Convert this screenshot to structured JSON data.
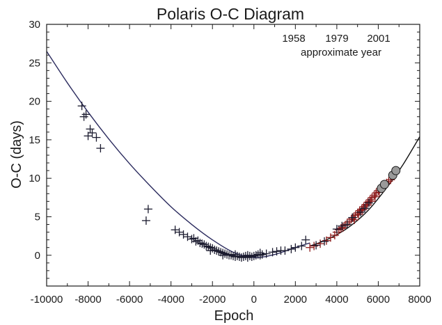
{
  "chart_data": {
    "type": "scatter",
    "title": "Polaris O-C Diagram",
    "xlabel": "Epoch",
    "ylabel": "O-C (days)",
    "xlim": [
      -10000,
      8000
    ],
    "ylim": [
      -4,
      30
    ],
    "x_ticks": [
      "-10000",
      "-8000",
      "-6000",
      "-4000",
      "-2000",
      "0",
      "2000",
      "4000",
      "6000",
      "8000"
    ],
    "y_ticks": [
      "0",
      "5",
      "10",
      "15",
      "20",
      "25",
      "30"
    ],
    "top_axis": {
      "years": [
        "1958",
        "1979",
        "2001"
      ],
      "label": "approximate year"
    },
    "colors": {
      "fit_dark": "#2b2b5e",
      "fit_black": "#111111",
      "old_points": "#1a1a2e",
      "recent_points": "#8b1a1a",
      "circles_fill": "#9a9a9a"
    },
    "fit_curves": [
      {
        "x": [
          -10000,
          -9000,
          -8000,
          -7000,
          -6000,
          -5000,
          -4000,
          -3000,
          -2000,
          -1000,
          0,
          1000,
          2000,
          2700
        ],
        "y": [
          26.5,
          22.4,
          18.6,
          15.1,
          11.9,
          9.0,
          6.3,
          4.0,
          2.0,
          0.4,
          -0.3,
          0.1,
          1.0,
          1.6
        ]
      },
      {
        "x": [
          2700,
          3500,
          4500,
          5500,
          6500,
          7200,
          8000
        ],
        "y": [
          1.2,
          2.0,
          3.5,
          5.8,
          9.1,
          11.8,
          15.4
        ]
      }
    ],
    "series": [
      {
        "color_key": "old_points",
        "marker": "plus",
        "points": [
          [
            -8300,
            19.4
          ],
          [
            -8200,
            18.0
          ],
          [
            -8100,
            18.3
          ],
          [
            -8000,
            15.5
          ],
          [
            -7900,
            16.4
          ],
          [
            -7800,
            15.9
          ],
          [
            -7600,
            15.3
          ],
          [
            -7400,
            13.9
          ],
          [
            -5100,
            6.0
          ],
          [
            -5200,
            4.5
          ],
          [
            -3800,
            3.3
          ],
          [
            -3600,
            3.0
          ],
          [
            -3400,
            2.7
          ],
          [
            -3200,
            2.4
          ],
          [
            -3000,
            2.1
          ],
          [
            -2900,
            2.2
          ],
          [
            -2800,
            1.8
          ],
          [
            -2700,
            1.9
          ],
          [
            -2600,
            1.6
          ],
          [
            -2500,
            1.5
          ],
          [
            -2400,
            1.4
          ],
          [
            -2300,
            1.2
          ],
          [
            -2200,
            1.1
          ],
          [
            -2100,
            1.0
          ],
          [
            -2000,
            0.9
          ],
          [
            -1900,
            0.7
          ],
          [
            -1800,
            0.6
          ],
          [
            -1700,
            0.5
          ],
          [
            -1600,
            0.4
          ],
          [
            -1500,
            0.3
          ],
          [
            -1400,
            0.2
          ],
          [
            -1300,
            0.1
          ],
          [
            -1200,
            0.0
          ],
          [
            -1100,
            0.0
          ],
          [
            -1000,
            -0.1
          ],
          [
            -900,
            -0.2
          ],
          [
            -800,
            -0.1
          ],
          [
            -700,
            -0.2
          ],
          [
            -600,
            -0.3
          ],
          [
            -500,
            -0.2
          ],
          [
            -400,
            -0.1
          ],
          [
            -300,
            0.0
          ],
          [
            -200,
            -0.1
          ],
          [
            -100,
            -0.2
          ],
          [
            0,
            -0.1
          ],
          [
            100,
            0.0
          ],
          [
            200,
            0.1
          ],
          [
            300,
            0.0
          ],
          [
            400,
            0.1
          ],
          [
            600,
            0.2
          ],
          [
            900,
            0.4
          ],
          [
            1100,
            0.5
          ],
          [
            1500,
            0.6
          ],
          [
            1800,
            0.8
          ],
          [
            2000,
            1.0
          ],
          [
            2300,
            1.2
          ],
          [
            2500,
            2.0
          ],
          [
            -2100,
            0.6
          ],
          [
            -1500,
            0.0
          ],
          [
            -900,
            0.1
          ],
          [
            -300,
            -0.3
          ],
          [
            300,
            0.3
          ],
          [
            1300,
            0.6
          ]
        ]
      },
      {
        "color_key": "recent_points",
        "marker": "plus",
        "points": [
          [
            2700,
            1.0
          ],
          [
            2900,
            1.2
          ],
          [
            3200,
            1.5
          ],
          [
            3500,
            1.9
          ],
          [
            3700,
            2.3
          ],
          [
            3900,
            2.6
          ],
          [
            4000,
            3.0
          ],
          [
            4100,
            3.3
          ],
          [
            4200,
            3.5
          ],
          [
            4300,
            3.6
          ],
          [
            4400,
            3.9
          ],
          [
            4500,
            4.2
          ],
          [
            4600,
            4.4
          ],
          [
            4700,
            4.7
          ],
          [
            4800,
            4.9
          ],
          [
            4900,
            5.2
          ],
          [
            5000,
            5.5
          ],
          [
            5100,
            5.8
          ],
          [
            5200,
            6.0
          ],
          [
            5300,
            6.3
          ],
          [
            5400,
            6.6
          ],
          [
            5500,
            6.9
          ],
          [
            5600,
            7.2
          ],
          [
            5700,
            7.5
          ],
          [
            5800,
            7.8
          ],
          [
            5900,
            8.1
          ],
          [
            6000,
            8.4
          ],
          [
            6100,
            8.7
          ],
          [
            6200,
            9.0
          ],
          [
            6300,
            9.2
          ],
          [
            6400,
            9.4
          ],
          [
            6500,
            9.6
          ],
          [
            6600,
            9.8
          ],
          [
            4850,
            4.6
          ],
          [
            5050,
            5.3
          ],
          [
            5250,
            5.9
          ],
          [
            5450,
            6.5
          ],
          [
            5650,
            7.0
          ],
          [
            5850,
            7.6
          ],
          [
            6050,
            8.2
          ]
        ]
      },
      {
        "color_key": "old_points",
        "marker": "plus",
        "points": [
          [
            4000,
            3.4
          ],
          [
            4250,
            3.8
          ],
          [
            4500,
            4.0
          ],
          [
            4750,
            4.9
          ],
          [
            5150,
            5.6
          ],
          [
            5350,
            6.1
          ],
          [
            5550,
            6.8
          ],
          [
            3400,
            1.8
          ],
          [
            3000,
            1.3
          ]
        ]
      },
      {
        "color_key": "circles_fill",
        "marker": "circle",
        "points": [
          [
            6150,
            8.7
          ],
          [
            6300,
            9.2
          ],
          [
            6700,
            10.4
          ],
          [
            6850,
            11.0
          ]
        ]
      }
    ]
  }
}
